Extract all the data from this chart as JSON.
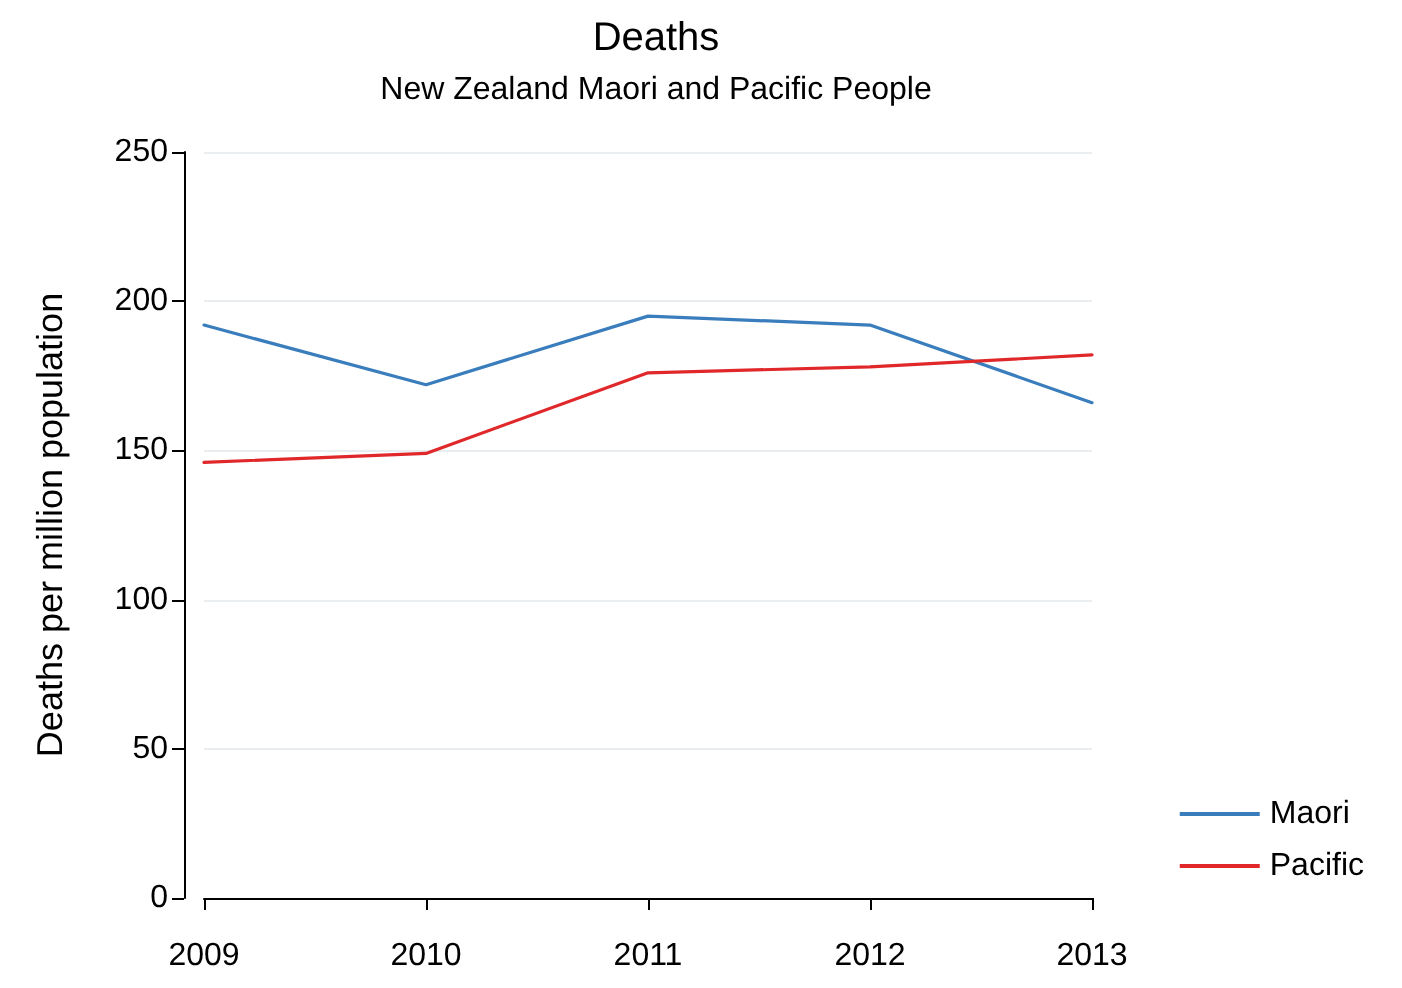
{
  "chart_data": {
    "type": "line",
    "title": "Deaths",
    "subtitle": "New Zealand Maori and Pacific People",
    "ylabel": "Deaths per million population",
    "x": [
      2009,
      2010,
      2011,
      2012,
      2013
    ],
    "series": [
      {
        "name": "Maori",
        "color": "#3a7dbd",
        "values": [
          192,
          172,
          195,
          192,
          166
        ]
      },
      {
        "name": "Pacific",
        "color": "#e0282a",
        "values": [
          146,
          149,
          176,
          178,
          182
        ]
      }
    ],
    "xlim": [
      2009,
      2013
    ],
    "xticks": [
      2009,
      2010,
      2011,
      2012,
      2013
    ],
    "ylim": [
      0,
      250
    ],
    "yticks": [
      0,
      50,
      100,
      150,
      200,
      250
    ],
    "grid": "y",
    "legend": "bottom right",
    "marker": "none",
    "line_style": "solid"
  }
}
